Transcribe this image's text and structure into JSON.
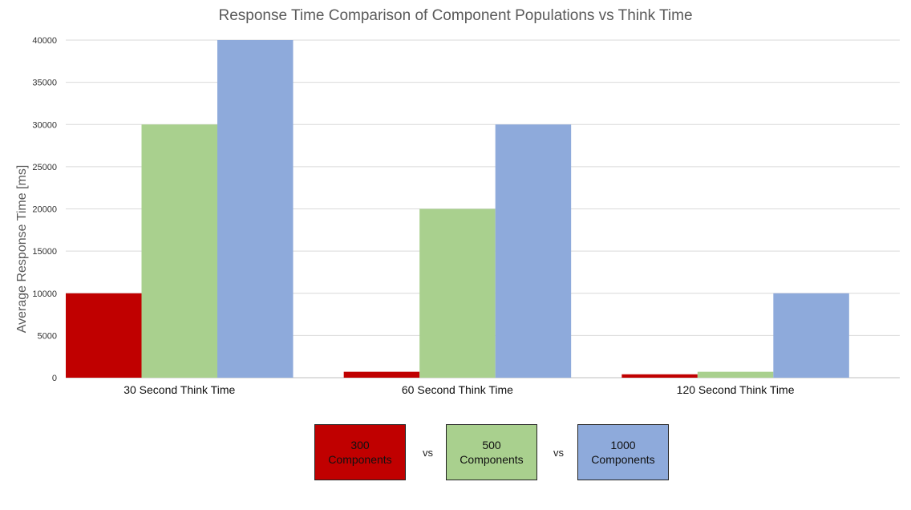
{
  "chart_data": {
    "type": "bar",
    "title": "Response Time Comparison of Component Populations vs Think Time",
    "ylabel": "Average Response Time [ms]",
    "xlabel": "",
    "categories": [
      "30 Second Think Time",
      "60 Second Think Time",
      "120 Second Think Time"
    ],
    "series": [
      {
        "name": "300\nComponents",
        "color": "#c00000",
        "values": [
          10000,
          700,
          400
        ]
      },
      {
        "name": "500\nComponents",
        "color": "#a9d08e",
        "values": [
          30000,
          20000,
          700
        ]
      },
      {
        "name": "1000\nComponents",
        "color": "#8eaadb",
        "values": [
          40000,
          30000,
          10000
        ]
      }
    ],
    "ylim": [
      0,
      40000
    ],
    "yticks": [
      "0",
      "5000",
      "10000",
      "15000",
      "20000",
      "25000",
      "30000",
      "35000",
      "40000"
    ],
    "grid": true,
    "legend": {
      "placement": "bottom",
      "separator": "vs"
    }
  }
}
